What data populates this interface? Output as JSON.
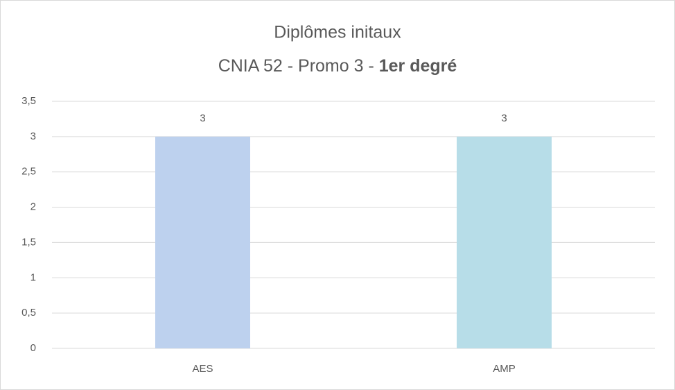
{
  "chart_data": {
    "type": "bar",
    "title": "Diplômes initaux",
    "subtitle": "CNIA 52 - Promo 3 -",
    "subtitle_emphasis": "1er degré",
    "categories": [
      "AES",
      "AMP"
    ],
    "values": [
      3,
      3
    ],
    "colors": [
      "#bdd1ee",
      "#b7dde8"
    ],
    "ylim": [
      0,
      3.5
    ],
    "yticks": [
      0,
      {
        "value": 0.5,
        "label": "0,5"
      },
      1,
      {
        "value": 1.5,
        "label": "1,5"
      },
      2,
      {
        "value": 2.5,
        "label": "2,5"
      },
      3,
      {
        "value": 3.5,
        "label": "3,5"
      }
    ],
    "grid": true,
    "data_labels": true
  }
}
